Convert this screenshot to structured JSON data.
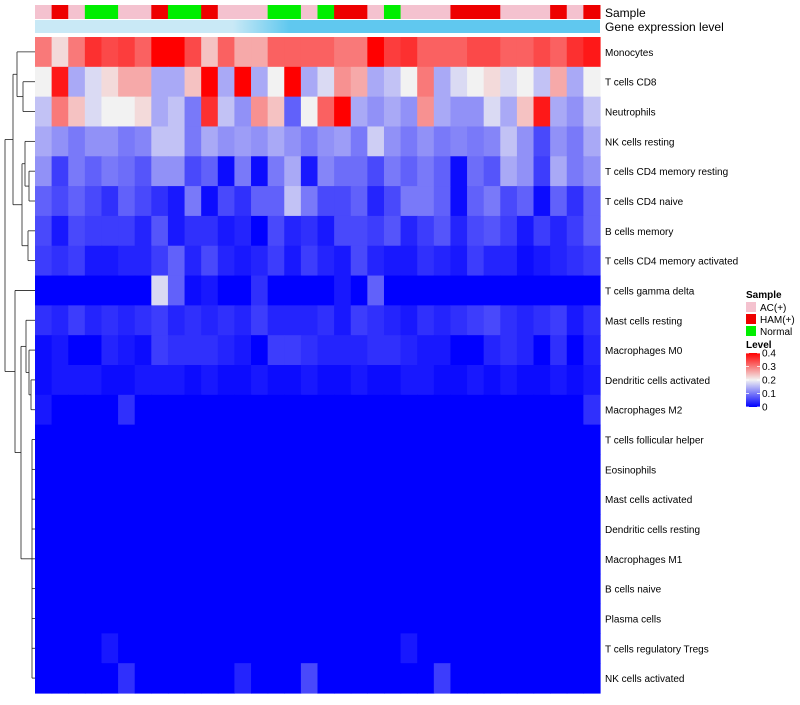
{
  "chart_data": {
    "type": "heatmap",
    "title": "",
    "annotation_titles": [
      "Sample",
      "Gene expression level"
    ],
    "rows": [
      "Monocytes",
      "T cells CD8",
      "Neutrophils",
      "NK cells resting",
      "T cells CD4 memory resting",
      "T cells CD4 naive",
      "B cells memory",
      "T cells CD4 memory activated",
      "T cells gamma delta",
      "Mast cells resting",
      "Macrophages M0",
      "Dendritic cells activated",
      "Macrophages M2",
      "T cells follicular helper",
      "Eosinophils",
      "Mast cells activated",
      "Dendritic cells resting",
      "Macrophages M1",
      "B cells naive",
      "Plasma cells",
      "T cells regulatory  Tregs",
      "NK cells activated"
    ],
    "sample_groups": [
      "AC",
      "HAM",
      "AC",
      "NM",
      "NM",
      "AC",
      "AC",
      "HAM",
      "NM",
      "NM",
      "HAM",
      "AC",
      "AC",
      "AC",
      "NM",
      "NM",
      "AC",
      "NM",
      "HAM",
      "HAM",
      "AC",
      "NM",
      "AC",
      "AC",
      "AC",
      "HAM",
      "HAM",
      "HAM",
      "AC",
      "AC",
      "AC",
      "HAM",
      "AC",
      "HAM"
    ],
    "values": [
      [
        0.3,
        0.22,
        0.3,
        0.36,
        0.34,
        0.35,
        0.32,
        0.4,
        0.4,
        0.34,
        0.24,
        0.32,
        0.26,
        0.26,
        0.32,
        0.32,
        0.32,
        0.32,
        0.3,
        0.3,
        0.4,
        0.35,
        0.36,
        0.32,
        0.32,
        0.32,
        0.34,
        0.34,
        0.32,
        0.32,
        0.34,
        0.32,
        0.36,
        0.38
      ],
      [
        0.2,
        0.38,
        0.14,
        0.18,
        0.22,
        0.26,
        0.26,
        0.14,
        0.14,
        0.24,
        0.4,
        0.14,
        0.4,
        0.14,
        0.2,
        0.4,
        0.14,
        0.18,
        0.28,
        0.26,
        0.14,
        0.16,
        0.2,
        0.3,
        0.14,
        0.18,
        0.2,
        0.22,
        0.18,
        0.2,
        0.16,
        0.26,
        0.14,
        0.2
      ],
      [
        0.16,
        0.3,
        0.24,
        0.18,
        0.2,
        0.2,
        0.22,
        0.14,
        0.16,
        0.1,
        0.36,
        0.16,
        0.12,
        0.28,
        0.24,
        0.08,
        0.2,
        0.32,
        0.4,
        0.14,
        0.12,
        0.14,
        0.12,
        0.28,
        0.14,
        0.12,
        0.12,
        0.18,
        0.14,
        0.24,
        0.38,
        0.14,
        0.12,
        0.16
      ],
      [
        0.14,
        0.12,
        0.1,
        0.12,
        0.12,
        0.1,
        0.11,
        0.16,
        0.16,
        0.1,
        0.14,
        0.12,
        0.13,
        0.12,
        0.14,
        0.12,
        0.1,
        0.12,
        0.13,
        0.1,
        0.17,
        0.12,
        0.1,
        0.12,
        0.1,
        0.11,
        0.1,
        0.11,
        0.16,
        0.12,
        0.06,
        0.12,
        0.1,
        0.14
      ],
      [
        0.12,
        0.05,
        0.1,
        0.08,
        0.1,
        0.09,
        0.07,
        0.12,
        0.12,
        0.06,
        0.08,
        0.01,
        0.1,
        0.01,
        0.1,
        0.14,
        0.02,
        0.11,
        0.09,
        0.09,
        0.06,
        0.1,
        0.08,
        0.1,
        0.08,
        0.01,
        0.09,
        0.07,
        0.14,
        0.12,
        0.05,
        0.14,
        0.1,
        0.12
      ],
      [
        0.08,
        0.06,
        0.08,
        0.06,
        0.04,
        0.08,
        0.06,
        0.04,
        0.02,
        0.1,
        0.01,
        0.06,
        0.04,
        0.08,
        0.08,
        0.16,
        0.1,
        0.06,
        0.06,
        0.08,
        0.03,
        0.06,
        0.1,
        0.1,
        0.08,
        0.01,
        0.08,
        0.1,
        0.06,
        0.08,
        0.01,
        0.08,
        0.04,
        0.08
      ],
      [
        0.06,
        0.02,
        0.06,
        0.05,
        0.05,
        0.05,
        0.03,
        0.07,
        0.02,
        0.04,
        0.04,
        0.02,
        0.03,
        0.0,
        0.06,
        0.03,
        0.04,
        0.02,
        0.06,
        0.06,
        0.05,
        0.07,
        0.03,
        0.05,
        0.07,
        0.03,
        0.06,
        0.07,
        0.05,
        0.02,
        0.05,
        0.03,
        0.05,
        0.08
      ],
      [
        0.05,
        0.04,
        0.05,
        0.02,
        0.02,
        0.03,
        0.03,
        0.05,
        0.08,
        0.03,
        0.06,
        0.03,
        0.02,
        0.03,
        0.05,
        0.02,
        0.05,
        0.03,
        0.02,
        0.06,
        0.03,
        0.02,
        0.02,
        0.04,
        0.03,
        0.02,
        0.05,
        0.03,
        0.03,
        0.01,
        0.02,
        0.03,
        0.04,
        0.05
      ],
      [
        0.0,
        0.0,
        0.0,
        0.0,
        0.0,
        0.0,
        0.0,
        0.18,
        0.08,
        0.01,
        0.02,
        0.0,
        0.0,
        0.04,
        0.0,
        0.0,
        0.0,
        0.0,
        0.02,
        0.0,
        0.08,
        0.0,
        0.0,
        0.0,
        0.0,
        0.0,
        0.0,
        0.0,
        0.0,
        0.0,
        0.0,
        0.0,
        0.0,
        0.0
      ],
      [
        0.04,
        0.03,
        0.05,
        0.03,
        0.04,
        0.03,
        0.04,
        0.05,
        0.03,
        0.04,
        0.03,
        0.04,
        0.03,
        0.05,
        0.03,
        0.03,
        0.03,
        0.04,
        0.02,
        0.05,
        0.04,
        0.03,
        0.02,
        0.04,
        0.03,
        0.04,
        0.05,
        0.06,
        0.04,
        0.03,
        0.04,
        0.05,
        0.02,
        0.04
      ],
      [
        0.01,
        0.02,
        0.0,
        0.0,
        0.03,
        0.02,
        0.01,
        0.05,
        0.04,
        0.04,
        0.04,
        0.03,
        0.02,
        0.0,
        0.05,
        0.05,
        0.04,
        0.03,
        0.03,
        0.03,
        0.04,
        0.04,
        0.03,
        0.02,
        0.02,
        0.0,
        0.0,
        0.03,
        0.04,
        0.03,
        0.0,
        0.04,
        0.0,
        0.03
      ],
      [
        0.01,
        0.02,
        0.02,
        0.02,
        0.01,
        0.01,
        0.02,
        0.02,
        0.02,
        0.01,
        0.02,
        0.01,
        0.01,
        0.02,
        0.01,
        0.01,
        0.02,
        0.01,
        0.01,
        0.02,
        0.01,
        0.01,
        0.02,
        0.02,
        0.01,
        0.01,
        0.02,
        0.01,
        0.02,
        0.01,
        0.01,
        0.02,
        0.01,
        0.02
      ],
      [
        0.02,
        0.0,
        0.0,
        0.0,
        0.0,
        0.04,
        0.0,
        0.0,
        0.0,
        0.0,
        0.0,
        0.0,
        0.0,
        0.0,
        0.0,
        0.0,
        0.0,
        0.0,
        0.0,
        0.0,
        0.0,
        0.0,
        0.0,
        0.0,
        0.0,
        0.0,
        0.0,
        0.0,
        0.0,
        0.0,
        0.0,
        0.0,
        0.0,
        0.04
      ],
      [
        0,
        0,
        0,
        0,
        0,
        0,
        0,
        0,
        0,
        0,
        0,
        0,
        0,
        0,
        0,
        0,
        0,
        0,
        0,
        0,
        0,
        0,
        0,
        0,
        0,
        0,
        0,
        0,
        0,
        0,
        0,
        0,
        0,
        0
      ],
      [
        0,
        0,
        0,
        0,
        0,
        0,
        0,
        0,
        0,
        0,
        0,
        0,
        0,
        0,
        0,
        0,
        0,
        0,
        0,
        0,
        0,
        0,
        0,
        0,
        0,
        0,
        0,
        0,
        0,
        0,
        0,
        0,
        0,
        0
      ],
      [
        0,
        0,
        0,
        0,
        0,
        0,
        0,
        0,
        0,
        0,
        0,
        0,
        0,
        0,
        0,
        0,
        0,
        0,
        0,
        0,
        0,
        0,
        0,
        0,
        0,
        0,
        0,
        0,
        0,
        0,
        0,
        0,
        0,
        0
      ],
      [
        0,
        0,
        0,
        0,
        0,
        0,
        0,
        0,
        0,
        0,
        0,
        0,
        0,
        0,
        0,
        0,
        0,
        0,
        0,
        0,
        0,
        0,
        0,
        0,
        0,
        0,
        0,
        0,
        0,
        0,
        0,
        0,
        0,
        0
      ],
      [
        0,
        0,
        0,
        0,
        0,
        0,
        0,
        0,
        0,
        0,
        0,
        0,
        0,
        0,
        0,
        0,
        0,
        0,
        0,
        0,
        0,
        0,
        0,
        0,
        0,
        0,
        0,
        0,
        0,
        0,
        0,
        0,
        0,
        0
      ],
      [
        0,
        0,
        0,
        0,
        0,
        0,
        0,
        0,
        0,
        0,
        0,
        0,
        0,
        0,
        0,
        0,
        0,
        0,
        0,
        0,
        0,
        0,
        0,
        0,
        0,
        0,
        0,
        0,
        0,
        0,
        0,
        0,
        0,
        0
      ],
      [
        0,
        0,
        0,
        0,
        0,
        0,
        0,
        0,
        0,
        0,
        0,
        0,
        0,
        0,
        0,
        0,
        0,
        0,
        0,
        0,
        0,
        0,
        0,
        0,
        0,
        0,
        0,
        0,
        0,
        0,
        0,
        0,
        0,
        0
      ],
      [
        0,
        0,
        0,
        0,
        0.02,
        0,
        0,
        0,
        0,
        0,
        0,
        0,
        0,
        0,
        0,
        0,
        0,
        0,
        0,
        0,
        0,
        0,
        0.02,
        0,
        0,
        0,
        0,
        0,
        0,
        0,
        0,
        0,
        0,
        0
      ],
      [
        0,
        0,
        0,
        0,
        0,
        0.04,
        0,
        0,
        0,
        0,
        0,
        0,
        0.03,
        0,
        0,
        0,
        0.06,
        0,
        0,
        0,
        0,
        0,
        0,
        0,
        0.05,
        0,
        0,
        0,
        0,
        0,
        0,
        0,
        0,
        0
      ]
    ],
    "legend_sample": {
      "title": "Sample",
      "items": [
        {
          "key": "AC",
          "label": "AC(+)",
          "color": "#f4c2cf"
        },
        {
          "key": "HAM",
          "label": "HAM(+)",
          "color": "#ee0000"
        },
        {
          "key": "NM",
          "label": "Normal",
          "color": "#00ee00"
        }
      ]
    },
    "legend_level": {
      "title": "Level",
      "ticks": [
        0.4,
        0.3,
        0.2,
        0.1,
        0
      ],
      "tick_labels": [
        "0.4",
        "0.3",
        "0.2",
        "0.1",
        "0"
      ],
      "range": [
        0,
        0.4
      ]
    },
    "colors": {
      "low": "#0000ff",
      "mid": "#f2f2f2",
      "high": "#ff0000",
      "gene_bar": "#60c8ef",
      "gene_bar_light": "#c9e9f6"
    }
  }
}
